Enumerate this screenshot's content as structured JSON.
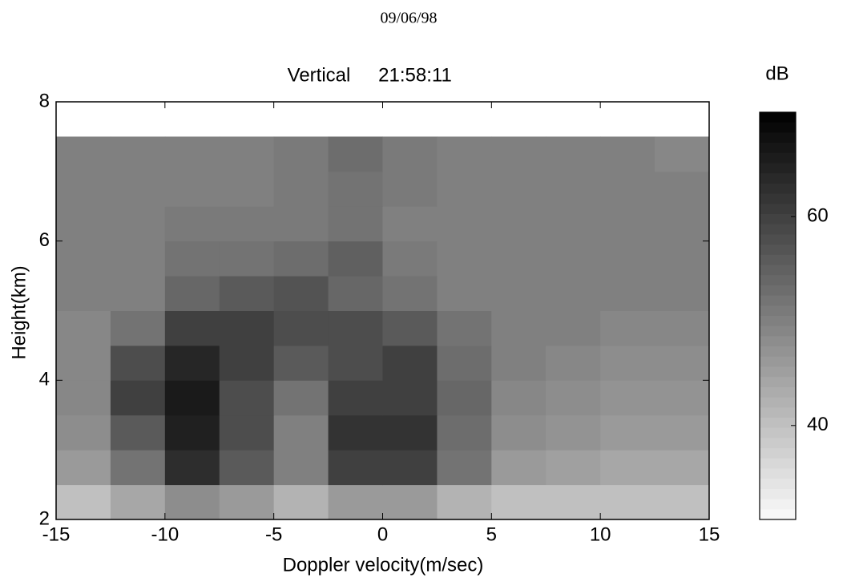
{
  "chart_data": {
    "type": "heatmap",
    "date": "09/06/98",
    "title": "Vertical",
    "time": "21:58:11",
    "colorbar_label": "dB",
    "x_label": "Doppler velocity(m/sec)",
    "y_label": "Height(km)",
    "xbins": [
      -15,
      -12.5,
      -10,
      -7.5,
      -5,
      -2.5,
      0,
      2.5,
      5,
      7.5,
      10,
      12.5,
      15
    ],
    "ybins": [
      2,
      2.5,
      3,
      3.5,
      4,
      4.5,
      5,
      5.5,
      6,
      6.5,
      7,
      7.5
    ],
    "values": [
      [
        40,
        44,
        48,
        46,
        42,
        46,
        46,
        42,
        40,
        40,
        40,
        40
      ],
      [
        46,
        52,
        63,
        56,
        50,
        60,
        60,
        52,
        46,
        45,
        44,
        44
      ],
      [
        48,
        56,
        65,
        58,
        50,
        62,
        62,
        53,
        48,
        47,
        46,
        46
      ],
      [
        49,
        60,
        66,
        58,
        52,
        60,
        60,
        54,
        49,
        48,
        47,
        47
      ],
      [
        49,
        58,
        64,
        60,
        56,
        58,
        60,
        53,
        50,
        49,
        48,
        48
      ],
      [
        49,
        52,
        60,
        60,
        58,
        58,
        56,
        52,
        50,
        50,
        49,
        49
      ],
      [
        50,
        50,
        54,
        56,
        57,
        54,
        52,
        50,
        50,
        50,
        50,
        50
      ],
      [
        50,
        50,
        52,
        52,
        53,
        55,
        51,
        50,
        50,
        50,
        50,
        50
      ],
      [
        50,
        50,
        51,
        51,
        51,
        52,
        50,
        50,
        50,
        50,
        50,
        50
      ],
      [
        50,
        50,
        50,
        50,
        51,
        52,
        51,
        50,
        50,
        50,
        50,
        50
      ],
      [
        50,
        50,
        50,
        50,
        51,
        53,
        51,
        50,
        50,
        50,
        50,
        49
      ]
    ],
    "xlim": [
      -15,
      15
    ],
    "xticks": [
      -15,
      -10,
      -5,
      0,
      5,
      10,
      15
    ],
    "ylim": [
      2,
      8
    ],
    "yticks": [
      2,
      4,
      6,
      8
    ],
    "clim": [
      31,
      70
    ],
    "cticks": [
      40,
      60
    ]
  }
}
